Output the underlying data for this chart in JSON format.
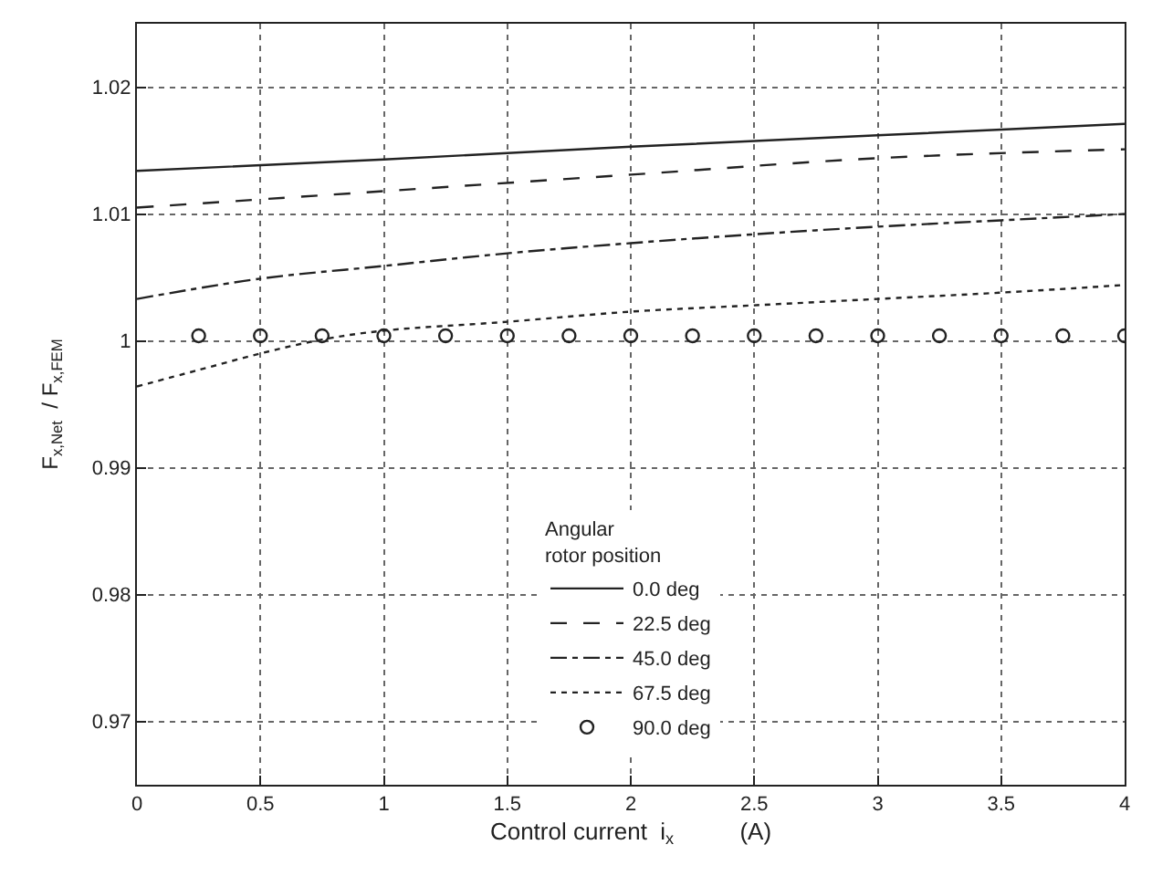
{
  "chart_data": {
    "type": "line",
    "xlabel": "Control current  i$_{x}$          (A)",
    "ylabel": "F$_{x,Net}$  / F$_{x,FEM}$",
    "legend_title": "Angular\nrotor position",
    "legend": "bottom",
    "grid": true,
    "xlim": [
      0,
      4
    ],
    "xticks": [
      0,
      0.5,
      1,
      1.5,
      2,
      2.5,
      3,
      3.5,
      4
    ],
    "ylim": [
      0.965,
      1.025
    ],
    "yticks": [
      0.97,
      0.98,
      0.99,
      1,
      1.01,
      1.02
    ],
    "series": [
      {
        "name": "0.0 deg",
        "color": "#222222",
        "line_style": "solid",
        "marker": "none",
        "x": [
          0,
          1,
          2,
          3,
          4
        ],
        "values": [
          1.0134,
          1.0143,
          1.0153,
          1.0162,
          1.0171
        ]
      },
      {
        "name": "22.5 deg",
        "color": "#222222",
        "line_style": "dashed",
        "marker": "none",
        "x": [
          0,
          1,
          2,
          3,
          4
        ],
        "values": [
          1.0105,
          1.0118,
          1.0131,
          1.0144,
          1.0151
        ]
      },
      {
        "name": "45.0 deg",
        "color": "#222222",
        "line_style": "dashdot",
        "marker": "none",
        "x": [
          0,
          0.5,
          1,
          1.5,
          2,
          2.5,
          3,
          3.5,
          4
        ],
        "values": [
          1.0033,
          1.0049,
          1.0059,
          1.0069,
          1.0077,
          1.0084,
          1.009,
          1.0095,
          1.01
        ]
      },
      {
        "name": "67.5 deg",
        "color": "#222222",
        "line_style": "dotted",
        "marker": "none",
        "x": [
          0,
          0.25,
          0.5,
          0.75,
          1,
          1.5,
          2,
          2.5,
          3,
          3.5,
          4
        ],
        "values": [
          0.9964,
          0.9977,
          0.999,
          1.0001,
          1.0008,
          1.0015,
          1.0023,
          1.0028,
          1.0033,
          1.0038,
          1.0044
        ]
      },
      {
        "name": "90.0 deg",
        "type": "scatter",
        "color": "#222222",
        "marker": "circle",
        "x": [
          0.25,
          0.5,
          0.75,
          1,
          1.25,
          1.5,
          1.75,
          2,
          2.25,
          2.5,
          2.75,
          3,
          3.25,
          3.5,
          3.75,
          4
        ],
        "values": [
          1.0004,
          1.0004,
          1.0004,
          1.0004,
          1.0004,
          1.0004,
          1.0004,
          1.0004,
          1.0004,
          1.0004,
          1.0004,
          1.0004,
          1.0004,
          1.0004,
          1.0004,
          1.0004
        ]
      }
    ]
  }
}
